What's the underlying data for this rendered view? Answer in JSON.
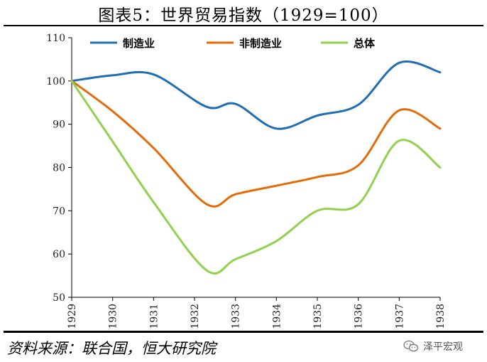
{
  "page": {
    "title": "图表5：世界贸易指数（1929=100）",
    "source": "资料来源：联合国，恒大研究院",
    "watermark": "泽平宏观",
    "watermark_icon": "wechat-icon"
  },
  "chart_data": {
    "type": "line",
    "title": "图表5：世界贸易指数（1929=100）",
    "xlabel": "",
    "ylabel": "",
    "categories": [
      "1929",
      "1930",
      "1931",
      "1932",
      "1933",
      "1934",
      "1935",
      "1936",
      "1937",
      "1938"
    ],
    "ylim": [
      50,
      110
    ],
    "yticks": [
      50,
      60,
      70,
      80,
      90,
      100,
      110
    ],
    "grid": false,
    "legend": "top",
    "series": [
      {
        "name": "制造业",
        "color": "#1f6db3",
        "points": [
          [
            1929,
            100
          ],
          [
            1930,
            101.3
          ],
          [
            1931,
            101.5
          ],
          [
            1932.3,
            94
          ],
          [
            1933,
            94.7
          ],
          [
            1934,
            89
          ],
          [
            1935,
            92
          ],
          [
            1936,
            94.5
          ],
          [
            1937,
            104.2
          ],
          [
            1938,
            102
          ]
        ]
      },
      {
        "name": "非制造业",
        "color": "#e36c0a",
        "points": [
          [
            1929,
            100
          ],
          [
            1930,
            93
          ],
          [
            1931,
            84.5
          ],
          [
            1932.3,
            71.5
          ],
          [
            1933,
            73.8
          ],
          [
            1934,
            75.8
          ],
          [
            1935,
            77.8
          ],
          [
            1936,
            80.5
          ],
          [
            1937,
            93.2
          ],
          [
            1938,
            89
          ]
        ]
      },
      {
        "name": "总体",
        "color": "#92d050",
        "points": [
          [
            1929,
            100
          ],
          [
            1930,
            86
          ],
          [
            1931,
            72
          ],
          [
            1932.3,
            56.2
          ],
          [
            1933,
            58.8
          ],
          [
            1934,
            63
          ],
          [
            1935,
            70
          ],
          [
            1936,
            71.5
          ],
          [
            1937,
            86.2
          ],
          [
            1938,
            80
          ]
        ]
      }
    ]
  }
}
